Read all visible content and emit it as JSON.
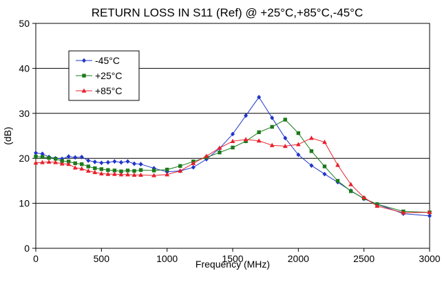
{
  "chart_data": {
    "type": "line",
    "title": "RETURN LOSS IN S11 (Ref) @ +25°C,+85°C,-45°C",
    "xlabel": "Frequency (MHz)",
    "ylabel": "(dB)",
    "xlim": [
      0,
      3000
    ],
    "ylim": [
      0,
      50
    ],
    "xticks": [
      0,
      500,
      1000,
      1500,
      2000,
      2500,
      3000
    ],
    "yticks": [
      0,
      10,
      20,
      30,
      40,
      50
    ],
    "grid": "horizontal",
    "legend": "top-left",
    "series": [
      {
        "name": "-45°C",
        "color": "#1f35c9",
        "marker": "diamond",
        "points": [
          [
            0,
            21.2
          ],
          [
            50,
            21
          ],
          [
            100,
            20.3
          ],
          [
            150,
            20
          ],
          [
            200,
            19.9
          ],
          [
            250,
            20.4
          ],
          [
            300,
            20.2
          ],
          [
            350,
            20.3
          ],
          [
            400,
            19.5
          ],
          [
            450,
            19.2
          ],
          [
            500,
            19
          ],
          [
            550,
            19.1
          ],
          [
            600,
            19.3
          ],
          [
            650,
            19.1
          ],
          [
            700,
            19.3
          ],
          [
            750,
            18.8
          ],
          [
            800,
            18.7
          ],
          [
            900,
            17.8
          ],
          [
            1000,
            17
          ],
          [
            1100,
            17.2
          ],
          [
            1200,
            18
          ],
          [
            1300,
            19.8
          ],
          [
            1400,
            22.2
          ],
          [
            1500,
            25.4
          ],
          [
            1600,
            29.5
          ],
          [
            1700,
            33.6
          ],
          [
            1800,
            29
          ],
          [
            1900,
            24.5
          ],
          [
            2000,
            20.8
          ],
          [
            2100,
            18.4
          ],
          [
            2200,
            16.5
          ],
          [
            2300,
            14.7
          ],
          [
            2400,
            12.8
          ],
          [
            2500,
            11
          ],
          [
            2600,
            9.8
          ],
          [
            2800,
            7.7
          ],
          [
            3000,
            7.2
          ]
        ]
      },
      {
        "name": "+25°C",
        "color": "#1b7a1b",
        "marker": "square",
        "points": [
          [
            0,
            20.4
          ],
          [
            50,
            20.3
          ],
          [
            100,
            20.1
          ],
          [
            150,
            19.9
          ],
          [
            200,
            19.4
          ],
          [
            250,
            19.3
          ],
          [
            300,
            18.9
          ],
          [
            350,
            18.7
          ],
          [
            400,
            18.2
          ],
          [
            450,
            17.8
          ],
          [
            500,
            17.6
          ],
          [
            550,
            17.4
          ],
          [
            600,
            17.3
          ],
          [
            650,
            17.1
          ],
          [
            700,
            17.3
          ],
          [
            750,
            17.2
          ],
          [
            800,
            17.4
          ],
          [
            900,
            17.3
          ],
          [
            1000,
            17.5
          ],
          [
            1100,
            18.3
          ],
          [
            1200,
            19.3
          ],
          [
            1300,
            20.2
          ],
          [
            1400,
            21.3
          ],
          [
            1500,
            22.4
          ],
          [
            1600,
            23.8
          ],
          [
            1700,
            25.8
          ],
          [
            1800,
            27
          ],
          [
            1900,
            28.6
          ],
          [
            2000,
            25.6
          ],
          [
            2100,
            21.6
          ],
          [
            2200,
            18.2
          ],
          [
            2300,
            15
          ],
          [
            2400,
            12.7
          ],
          [
            2500,
            11.1
          ],
          [
            2600,
            9.8
          ],
          [
            2800,
            8.2
          ],
          [
            3000,
            8
          ]
        ]
      },
      {
        "name": "+85°C",
        "color": "#e8202b",
        "marker": "triangle",
        "points": [
          [
            0,
            19
          ],
          [
            50,
            19.1
          ],
          [
            100,
            19.2
          ],
          [
            150,
            19.1
          ],
          [
            200,
            18.8
          ],
          [
            250,
            18.7
          ],
          [
            300,
            17.9
          ],
          [
            350,
            17.7
          ],
          [
            400,
            17.2
          ],
          [
            450,
            16.9
          ],
          [
            500,
            16.6
          ],
          [
            550,
            16.5
          ],
          [
            600,
            16.5
          ],
          [
            650,
            16.4
          ],
          [
            700,
            16.4
          ],
          [
            750,
            16.3
          ],
          [
            800,
            16.3
          ],
          [
            900,
            16.2
          ],
          [
            1000,
            16.4
          ],
          [
            1100,
            17.2
          ],
          [
            1200,
            18.9
          ],
          [
            1300,
            20.5
          ],
          [
            1400,
            22.3
          ],
          [
            1500,
            23.8
          ],
          [
            1600,
            24.2
          ],
          [
            1700,
            23.9
          ],
          [
            1800,
            22.9
          ],
          [
            1900,
            22.7
          ],
          [
            2000,
            23.1
          ],
          [
            2100,
            24.5
          ],
          [
            2200,
            23.6
          ],
          [
            2300,
            18.5
          ],
          [
            2400,
            14.2
          ],
          [
            2500,
            11.3
          ],
          [
            2600,
            9.4
          ],
          [
            2800,
            7.9
          ],
          [
            3000,
            8
          ]
        ]
      }
    ]
  }
}
